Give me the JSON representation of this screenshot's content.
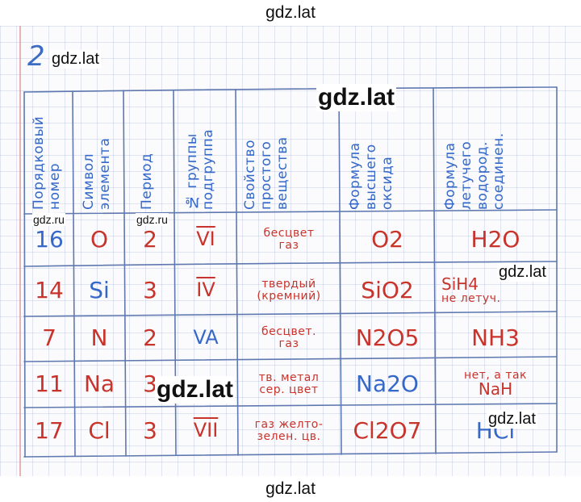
{
  "watermarks": {
    "top": "gdz.lat",
    "bottom": "gdz.lat",
    "near_number": "gdz.lat",
    "header_center": "gdz.lat",
    "row1_left": "gdz.ru",
    "row1_mid": "gdz.ru",
    "row2_right": "gdz.lat",
    "row4_center": "gdz.lat",
    "row5_right": "gdz.lat"
  },
  "task_number": "2",
  "table": {
    "headers": [
      "Порядковый номер",
      "Символ элемента",
      "Период",
      "№ группы подгруппа",
      "Свойство простого вещества",
      "Формула высшего оксида",
      "Формула летучего водород. соединен."
    ],
    "rows": [
      {
        "number": "16",
        "symbol": "O",
        "period": "2",
        "group": "VI",
        "property": [
          "бесцвет",
          "газ"
        ],
        "oxide": "O2",
        "hydride": [
          "H2O"
        ]
      },
      {
        "number": "14",
        "symbol": "Si",
        "period": "3",
        "group": "IV",
        "property": [
          "твердый",
          "(кремний)"
        ],
        "oxide": "SiO2",
        "hydride": [
          "SiH4",
          "не летуч."
        ]
      },
      {
        "number": "7",
        "symbol": "N",
        "period": "2",
        "group": "VA",
        "property": [
          "бесцвет.",
          "газ"
        ],
        "oxide": "N2O5",
        "hydride": [
          "NH3"
        ]
      },
      {
        "number": "11",
        "symbol": "Na",
        "period": "3",
        "group": "",
        "property": [
          "тв. метал",
          "сер. цвет"
        ],
        "oxide": "Na2O",
        "hydride": [
          "нет, а так",
          "NaH"
        ]
      },
      {
        "number": "17",
        "symbol": "Cl",
        "period": "3",
        "group": "VII",
        "property": [
          "газ желто-",
          "зелен. цв."
        ],
        "oxide": "Cl2O7",
        "hydride": [
          "HCl"
        ]
      }
    ]
  },
  "colors": {
    "blue_ink": "#3568c8",
    "red_ink": "#c8342b",
    "grid": "#9aaccc"
  }
}
